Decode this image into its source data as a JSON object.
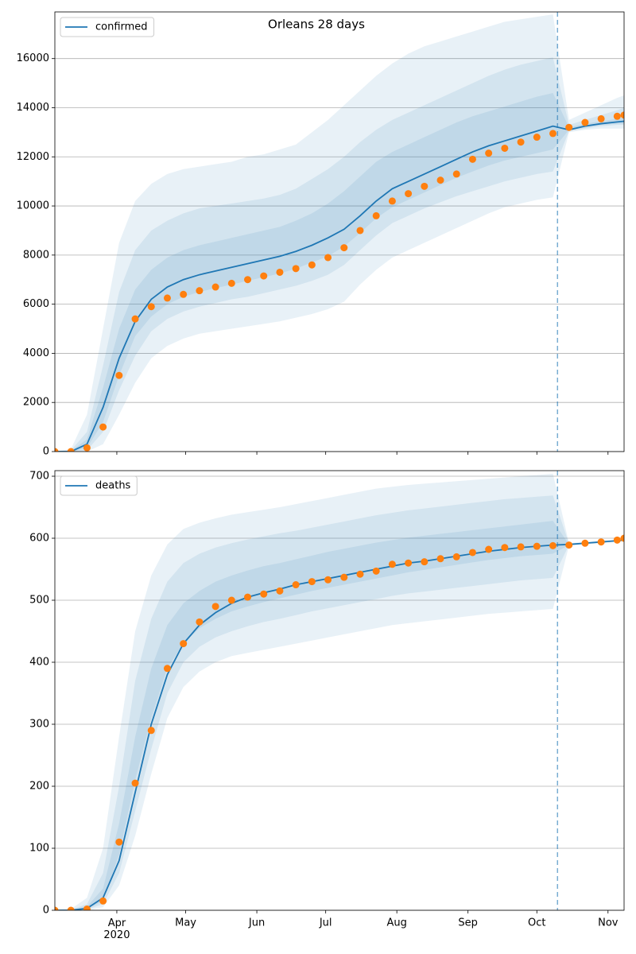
{
  "chart_data": [
    {
      "type": "line",
      "title": "Orleans 28 days",
      "x": [
        "2020-03-05",
        "2020-03-12",
        "2020-03-19",
        "2020-03-26",
        "2020-04-02",
        "2020-04-09",
        "2020-04-16",
        "2020-04-23",
        "2020-04-30",
        "2020-05-07",
        "2020-05-14",
        "2020-05-21",
        "2020-05-28",
        "2020-06-04",
        "2020-06-11",
        "2020-06-18",
        "2020-06-25",
        "2020-07-02",
        "2020-07-09",
        "2020-07-16",
        "2020-07-23",
        "2020-07-30",
        "2020-08-06",
        "2020-08-13",
        "2020-08-20",
        "2020-08-27",
        "2020-09-03",
        "2020-09-10",
        "2020-09-17",
        "2020-09-24",
        "2020-10-01",
        "2020-10-08",
        "2020-10-15",
        "2020-10-22",
        "2020-10-29",
        "2020-11-05",
        "2020-11-08"
      ],
      "series": [
        {
          "name": "confirmed",
          "color": "#1f77b4",
          "values": [
            0,
            0,
            300,
            1800,
            3800,
            5300,
            6200,
            6700,
            7000,
            7200,
            7350,
            7500,
            7650,
            7800,
            7950,
            8150,
            8400,
            8700,
            9050,
            9600,
            10200,
            10700,
            11000,
            11300,
            11600,
            11900,
            12200,
            12450,
            12650,
            12850,
            13050,
            13250,
            13100,
            13250,
            13350,
            13420,
            13450
          ]
        }
      ],
      "points": {
        "color": "#ff7f0e",
        "values": [
          0,
          0,
          150,
          1000,
          3100,
          5400,
          5900,
          6250,
          6400,
          6550,
          6700,
          6850,
          7000,
          7150,
          7300,
          7450,
          7600,
          7900,
          8300,
          9000,
          9600,
          10200,
          10500,
          10800,
          11050,
          11300,
          11900,
          12150,
          12350,
          12600,
          12800,
          12950,
          13200,
          13400,
          13550,
          13650,
          13700
        ]
      },
      "band_color": "#1f77b4",
      "band_opacity": 0.1,
      "bands": [
        {
          "upper": [
            0,
            100,
            1500,
            5000,
            8500,
            10200,
            10900,
            11300,
            11500,
            11600,
            11700,
            11800,
            12000,
            12100,
            12300,
            12500,
            13000,
            13500,
            14100,
            14700,
            15300,
            15800,
            16200,
            16500,
            16700,
            16900,
            17100,
            17300,
            17500,
            17600,
            17700,
            17800,
            13500,
            13800,
            14100,
            14400,
            14500
          ],
          "lower": [
            0,
            0,
            0,
            300,
            1500,
            2800,
            3800,
            4300,
            4600,
            4800,
            4900,
            5000,
            5100,
            5200,
            5300,
            5450,
            5600,
            5800,
            6100,
            6800,
            7400,
            7900,
            8200,
            8500,
            8800,
            9100,
            9400,
            9700,
            9950,
            10100,
            10250,
            10350,
            13000,
            13100,
            13150,
            13150,
            13150
          ]
        },
        {
          "upper": [
            0,
            50,
            800,
            3500,
            6500,
            8200,
            9000,
            9400,
            9700,
            9900,
            10000,
            10100,
            10200,
            10300,
            10450,
            10700,
            11100,
            11500,
            12000,
            12600,
            13100,
            13500,
            13800,
            14100,
            14400,
            14700,
            15000,
            15300,
            15550,
            15750,
            15900,
            16050,
            13300,
            13500,
            13700,
            13900,
            14000
          ],
          "lower": [
            0,
            0,
            50,
            800,
            2500,
            3900,
            4900,
            5400,
            5700,
            5900,
            6050,
            6200,
            6300,
            6450,
            6600,
            6750,
            6950,
            7200,
            7600,
            8200,
            8800,
            9300,
            9600,
            9900,
            10150,
            10400,
            10600,
            10800,
            11000,
            11150,
            11300,
            11400,
            13050,
            13150,
            13250,
            13300,
            13300
          ]
        },
        {
          "upper": [
            0,
            20,
            500,
            2600,
            5000,
            6600,
            7400,
            7900,
            8200,
            8400,
            8550,
            8700,
            8850,
            9000,
            9150,
            9400,
            9700,
            10100,
            10600,
            11200,
            11800,
            12200,
            12500,
            12800,
            13100,
            13400,
            13650,
            13850,
            14050,
            14250,
            14450,
            14600,
            13200,
            13350,
            13450,
            13550,
            13600
          ],
          "lower": [
            0,
            0,
            150,
            1200,
            3100,
            4700,
            5500,
            6000,
            6300,
            6500,
            6650,
            6800,
            6950,
            7100,
            7250,
            7450,
            7700,
            7950,
            8350,
            8900,
            9500,
            9950,
            10250,
            10550,
            10850,
            11150,
            11400,
            11650,
            11850,
            12000,
            12150,
            12300,
            13100,
            13200,
            13300,
            13350,
            13350
          ]
        }
      ],
      "vline": "2020-10-10",
      "xlim": [
        "2020-03-05",
        "2020-11-08"
      ],
      "xticks": [
        "2020-04-01",
        "2020-05-01",
        "2020-06-01",
        "2020-07-01",
        "2020-08-01",
        "2020-09-01",
        "2020-10-01",
        "2020-11-01"
      ],
      "ylim": [
        0,
        17900
      ],
      "yticks": [
        0,
        2000,
        4000,
        6000,
        8000,
        10000,
        12000,
        14000,
        16000
      ],
      "grid": true,
      "legend": "upper left"
    },
    {
      "type": "line",
      "x": [
        "2020-03-05",
        "2020-03-12",
        "2020-03-19",
        "2020-03-26",
        "2020-04-02",
        "2020-04-09",
        "2020-04-16",
        "2020-04-23",
        "2020-04-30",
        "2020-05-07",
        "2020-05-14",
        "2020-05-21",
        "2020-05-28",
        "2020-06-04",
        "2020-06-11",
        "2020-06-18",
        "2020-06-25",
        "2020-07-02",
        "2020-07-09",
        "2020-07-16",
        "2020-07-23",
        "2020-07-30",
        "2020-08-06",
        "2020-08-13",
        "2020-08-20",
        "2020-08-27",
        "2020-09-03",
        "2020-09-10",
        "2020-09-17",
        "2020-09-24",
        "2020-10-01",
        "2020-10-08",
        "2020-10-15",
        "2020-10-22",
        "2020-10-29",
        "2020-11-05",
        "2020-11-08"
      ],
      "series": [
        {
          "name": "deaths",
          "color": "#1f77b4",
          "values": [
            0,
            0,
            3,
            20,
            80,
            190,
            300,
            380,
            430,
            460,
            480,
            495,
            505,
            512,
            518,
            525,
            530,
            535,
            540,
            545,
            550,
            555,
            560,
            563,
            567,
            571,
            575,
            579,
            582,
            585,
            587,
            589,
            590,
            592,
            594,
            596,
            597
          ]
        }
      ],
      "points": {
        "color": "#ff7f0e",
        "values": [
          0,
          0,
          2,
          15,
          110,
          205,
          290,
          390,
          430,
          465,
          490,
          500,
          505,
          510,
          515,
          525,
          530,
          533,
          537,
          542,
          547,
          558,
          560,
          562,
          567,
          570,
          577,
          582,
          585,
          586,
          587,
          588,
          589,
          592,
          594,
          597,
          600
        ]
      },
      "band_color": "#1f77b4",
      "band_opacity": 0.1,
      "bands": [
        {
          "upper": [
            0,
            2,
            20,
            100,
            280,
            450,
            540,
            590,
            615,
            625,
            632,
            638,
            642,
            646,
            650,
            655,
            660,
            665,
            670,
            675,
            680,
            683,
            686,
            688,
            690,
            692,
            694,
            696,
            698,
            700,
            702,
            704,
            592,
            594,
            596,
            598,
            599
          ],
          "lower": [
            0,
            0,
            0,
            5,
            40,
            120,
            220,
            310,
            360,
            385,
            400,
            410,
            415,
            420,
            425,
            430,
            435,
            440,
            445,
            450,
            455,
            460,
            463,
            466,
            469,
            472,
            475,
            478,
            480,
            482,
            484,
            486,
            588,
            590,
            592,
            594,
            595
          ]
        },
        {
          "upper": [
            0,
            1,
            10,
            60,
            200,
            370,
            470,
            530,
            560,
            575,
            585,
            592,
            598,
            603,
            608,
            612,
            617,
            622,
            627,
            632,
            637,
            641,
            645,
            648,
            651,
            654,
            657,
            660,
            663,
            665,
            667,
            669,
            591,
            593,
            595,
            597,
            598
          ],
          "lower": [
            0,
            0,
            1,
            10,
            60,
            160,
            260,
            350,
            400,
            425,
            440,
            450,
            458,
            465,
            470,
            476,
            482,
            487,
            492,
            497,
            502,
            507,
            511,
            514,
            517,
            520,
            523,
            526,
            529,
            532,
            534,
            536,
            589,
            591,
            593,
            595,
            596
          ]
        },
        {
          "upper": [
            0,
            1,
            6,
            35,
            140,
            280,
            390,
            460,
            495,
            515,
            530,
            540,
            548,
            555,
            560,
            566,
            572,
            578,
            583,
            588,
            593,
            597,
            601,
            604,
            607,
            610,
            613,
            616,
            619,
            622,
            625,
            628,
            590,
            592,
            594,
            596,
            597
          ],
          "lower": [
            0,
            0,
            2,
            15,
            90,
            210,
            310,
            390,
            430,
            455,
            470,
            482,
            490,
            497,
            503,
            509,
            515,
            520,
            525,
            530,
            535,
            540,
            545,
            549,
            553,
            557,
            561,
            565,
            568,
            571,
            573,
            575,
            589,
            591,
            593,
            595,
            596
          ]
        }
      ],
      "vline": "2020-10-10",
      "xlim": [
        "2020-03-05",
        "2020-11-08"
      ],
      "xticks": [
        {
          "value": "2020-04-01",
          "label": "Apr\n2020"
        },
        {
          "value": "2020-05-01",
          "label": "May"
        },
        {
          "value": "2020-06-01",
          "label": "Jun"
        },
        {
          "value": "2020-07-01",
          "label": "Jul"
        },
        {
          "value": "2020-08-01",
          "label": "Aug"
        },
        {
          "value": "2020-09-01",
          "label": "Sep"
        },
        {
          "value": "2020-10-01",
          "label": "Oct"
        },
        {
          "value": "2020-11-01",
          "label": "Nov"
        }
      ],
      "ylim": [
        0,
        709
      ],
      "yticks": [
        0,
        100,
        200,
        300,
        400,
        500,
        600,
        700
      ],
      "grid": true,
      "legend": "upper left"
    }
  ]
}
